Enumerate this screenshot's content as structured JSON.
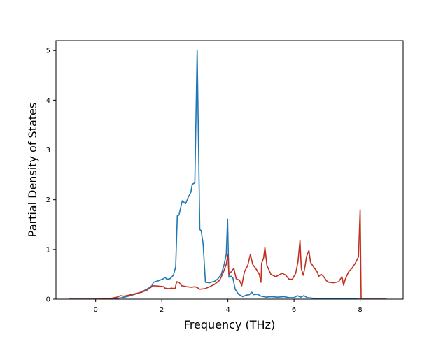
{
  "chart_data": {
    "type": "line",
    "xlabel": "Frequency (THz)",
    "ylabel": "Partial Density of States",
    "xlim": [
      -1.2,
      9.3
    ],
    "ylim": [
      0,
      5.2
    ],
    "xticks": [
      0,
      2,
      4,
      6,
      8
    ],
    "yticks": [
      0,
      1,
      2,
      3,
      4,
      5
    ],
    "grid": false,
    "series": [
      {
        "color": "#1f77b4",
        "points": [
          [
            -0.8,
            0
          ],
          [
            0.4,
            0
          ],
          [
            0.6,
            0.01
          ],
          [
            0.8,
            0.03
          ],
          [
            1.0,
            0.06
          ],
          [
            1.2,
            0.1
          ],
          [
            1.4,
            0.15
          ],
          [
            1.6,
            0.22
          ],
          [
            1.7,
            0.27
          ],
          [
            1.75,
            0.34
          ],
          [
            1.9,
            0.37
          ],
          [
            2.05,
            0.41
          ],
          [
            2.1,
            0.44
          ],
          [
            2.15,
            0.4
          ],
          [
            2.25,
            0.41
          ],
          [
            2.35,
            0.48
          ],
          [
            2.42,
            0.65
          ],
          [
            2.47,
            1.68
          ],
          [
            2.52,
            1.69
          ],
          [
            2.62,
            1.98
          ],
          [
            2.72,
            1.92
          ],
          [
            2.8,
            2.05
          ],
          [
            2.88,
            2.15
          ],
          [
            2.92,
            2.31
          ],
          [
            3.0,
            2.34
          ],
          [
            3.07,
            5.01
          ],
          [
            3.15,
            1.4
          ],
          [
            3.19,
            1.38
          ],
          [
            3.25,
            1.12
          ],
          [
            3.32,
            0.34
          ],
          [
            3.45,
            0.33
          ],
          [
            3.6,
            0.36
          ],
          [
            3.7,
            0.41
          ],
          [
            3.8,
            0.5
          ],
          [
            3.88,
            0.68
          ],
          [
            3.95,
            0.9
          ],
          [
            3.99,
            1.61
          ],
          [
            4.03,
            0.44
          ],
          [
            4.1,
            0.46
          ],
          [
            4.15,
            0.43
          ],
          [
            4.22,
            0.2
          ],
          [
            4.32,
            0.1
          ],
          [
            4.45,
            0.05
          ],
          [
            4.55,
            0.08
          ],
          [
            4.65,
            0.09
          ],
          [
            4.72,
            0.14
          ],
          [
            4.78,
            0.09
          ],
          [
            4.9,
            0.1
          ],
          [
            5.0,
            0.06
          ],
          [
            5.15,
            0.04
          ],
          [
            5.3,
            0.05
          ],
          [
            5.5,
            0.04
          ],
          [
            5.7,
            0.05
          ],
          [
            5.85,
            0.03
          ],
          [
            6.0,
            0.03
          ],
          [
            6.1,
            0.07
          ],
          [
            6.2,
            0.04
          ],
          [
            6.3,
            0.07
          ],
          [
            6.4,
            0.03
          ],
          [
            6.55,
            0.02
          ],
          [
            6.8,
            0.01
          ],
          [
            7.2,
            0.01
          ],
          [
            7.6,
            0.01
          ],
          [
            8.0,
            0.0
          ],
          [
            8.8,
            0
          ]
        ]
      },
      {
        "color": "#c03020",
        "points": [
          [
            -0.8,
            0
          ],
          [
            0.1,
            0
          ],
          [
            0.3,
            0.01
          ],
          [
            0.5,
            0.02
          ],
          [
            0.65,
            0.04
          ],
          [
            0.75,
            0.07
          ],
          [
            0.85,
            0.06
          ],
          [
            1.0,
            0.08
          ],
          [
            1.2,
            0.11
          ],
          [
            1.4,
            0.14
          ],
          [
            1.55,
            0.18
          ],
          [
            1.65,
            0.23
          ],
          [
            1.75,
            0.27
          ],
          [
            1.95,
            0.26
          ],
          [
            2.05,
            0.25
          ],
          [
            2.1,
            0.22
          ],
          [
            2.2,
            0.21
          ],
          [
            2.3,
            0.22
          ],
          [
            2.4,
            0.21
          ],
          [
            2.45,
            0.35
          ],
          [
            2.52,
            0.34
          ],
          [
            2.6,
            0.27
          ],
          [
            2.75,
            0.25
          ],
          [
            2.9,
            0.24
          ],
          [
            3.0,
            0.25
          ],
          [
            3.08,
            0.23
          ],
          [
            3.15,
            0.2
          ],
          [
            3.3,
            0.21
          ],
          [
            3.45,
            0.25
          ],
          [
            3.6,
            0.3
          ],
          [
            3.75,
            0.38
          ],
          [
            3.85,
            0.52
          ],
          [
            3.95,
            0.7
          ],
          [
            4.0,
            0.9
          ],
          [
            4.03,
            0.5
          ],
          [
            4.1,
            0.55
          ],
          [
            4.18,
            0.62
          ],
          [
            4.25,
            0.41
          ],
          [
            4.35,
            0.38
          ],
          [
            4.42,
            0.27
          ],
          [
            4.5,
            0.55
          ],
          [
            4.6,
            0.68
          ],
          [
            4.68,
            0.9
          ],
          [
            4.75,
            0.7
          ],
          [
            4.85,
            0.61
          ],
          [
            4.95,
            0.5
          ],
          [
            5.0,
            0.34
          ],
          [
            5.02,
            0.72
          ],
          [
            5.08,
            0.83
          ],
          [
            5.12,
            1.04
          ],
          [
            5.18,
            0.68
          ],
          [
            5.3,
            0.5
          ],
          [
            5.45,
            0.45
          ],
          [
            5.55,
            0.49
          ],
          [
            5.65,
            0.52
          ],
          [
            5.75,
            0.48
          ],
          [
            5.85,
            0.4
          ],
          [
            5.95,
            0.4
          ],
          [
            6.05,
            0.52
          ],
          [
            6.12,
            0.75
          ],
          [
            6.18,
            1.18
          ],
          [
            6.22,
            0.62
          ],
          [
            6.28,
            0.48
          ],
          [
            6.33,
            0.65
          ],
          [
            6.38,
            0.86
          ],
          [
            6.45,
            0.98
          ],
          [
            6.5,
            0.74
          ],
          [
            6.6,
            0.64
          ],
          [
            6.7,
            0.55
          ],
          [
            6.75,
            0.46
          ],
          [
            6.82,
            0.5
          ],
          [
            6.9,
            0.45
          ],
          [
            6.98,
            0.37
          ],
          [
            7.05,
            0.34
          ],
          [
            7.2,
            0.33
          ],
          [
            7.35,
            0.35
          ],
          [
            7.45,
            0.45
          ],
          [
            7.5,
            0.28
          ],
          [
            7.55,
            0.4
          ],
          [
            7.65,
            0.55
          ],
          [
            7.75,
            0.62
          ],
          [
            7.85,
            0.72
          ],
          [
            7.95,
            0.85
          ],
          [
            8.0,
            1.8
          ],
          [
            8.03,
            0.0
          ],
          [
            8.8,
            0
          ]
        ]
      }
    ]
  }
}
